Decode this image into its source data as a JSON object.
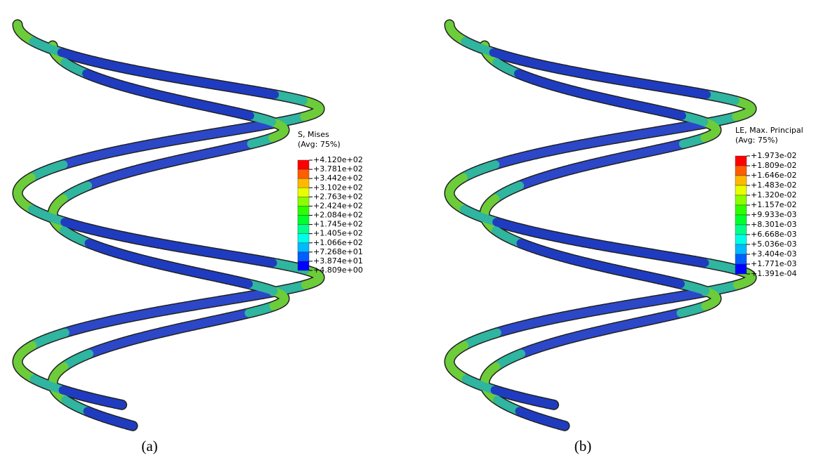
{
  "legend_colors": [
    "#ff0000",
    "#ff5d00",
    "#ffb900",
    "#e8ff00",
    "#8bff00",
    "#2eff00",
    "#00ff2e",
    "#00ff8b",
    "#00ffe8",
    "#00b9ff",
    "#005dff",
    "#0000ff"
  ],
  "panels": [
    {
      "legend": {
        "title": "S, Mises",
        "subtitle": "(Avg: 75%)",
        "labels": [
          "+4.120e+02",
          "+3.781e+02",
          "+3.442e+02",
          "+3.102e+02",
          "+2.763e+02",
          "+2.424e+02",
          "+2.084e+02",
          "+1.745e+02",
          "+1.405e+02",
          "+1.066e+02",
          "+7.268e+01",
          "+3.874e+01",
          "+4.809e+00"
        ]
      },
      "caption": "(a)"
    },
    {
      "legend": {
        "title": "LE, Max. Principal",
        "subtitle": "(Avg: 75%)",
        "labels": [
          "+1.973e-02",
          "+1.809e-02",
          "+1.646e-02",
          "+1.483e-02",
          "+1.320e-02",
          "+1.157e-02",
          "+9.933e-03",
          "+8.301e-03",
          "+6.668e-03",
          "+5.036e-03",
          "+3.404e-03",
          "+1.771e-03",
          "+1.391e-04"
        ]
      },
      "caption": "(b)"
    }
  ]
}
